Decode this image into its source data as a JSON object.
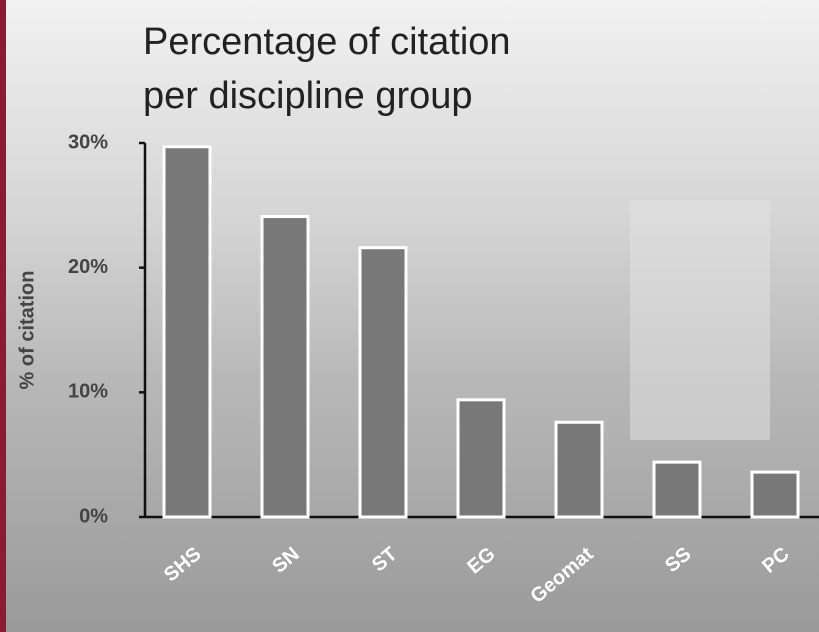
{
  "chart_data": {
    "type": "bar",
    "title": "Percentage of citation per discipline group",
    "y_label": "% of citation",
    "categories": [
      "SHS",
      "SN",
      "ST",
      "EG",
      "Geomat",
      "SS",
      "PC"
    ],
    "values": [
      29.7,
      24.1,
      21.6,
      9.4,
      7.6,
      4.4,
      3.6
    ],
    "color": "#787878",
    "ylim": [
      0,
      30
    ],
    "yticks": [
      {
        "value": 0,
        "label": "0%"
      },
      {
        "value": 10,
        "label": "10%"
      },
      {
        "value": 20,
        "label": "20%"
      },
      {
        "value": 30,
        "label": "30%"
      }
    ],
    "grid": false
  }
}
